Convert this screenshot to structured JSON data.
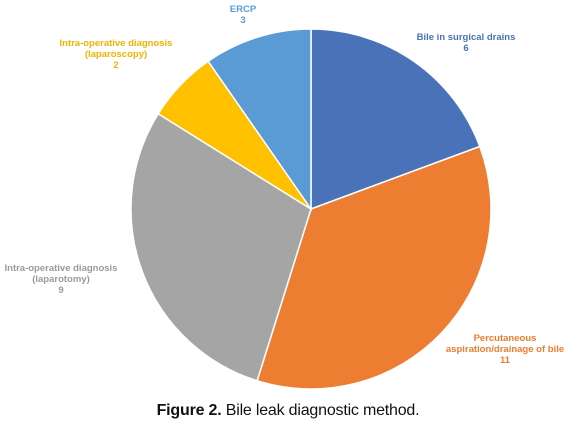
{
  "caption": {
    "label": "Figure 2.",
    "text": "Bile leak diagnostic method."
  },
  "chart_data": {
    "type": "pie",
    "start_angle_deg": 0,
    "direction": "clockwise",
    "slices": [
      {
        "label_lines": [
          "Bile in surgical drains"
        ],
        "value": 6,
        "color": "#4a72b8",
        "label_color": "#4a72b8"
      },
      {
        "label_lines": [
          "Percutaneous",
          "aspiration/drainage of bile"
        ],
        "value": 11,
        "color": "#ed7d31",
        "label_color": "#ed7d31"
      },
      {
        "label_lines": [
          "Intra-operative diagnosis",
          "(laparotomy)"
        ],
        "value": 9,
        "color": "#a5a5a5",
        "label_color": "#9a9a9a"
      },
      {
        "label_lines": [
          "Intra-operative diagnosis",
          "(laparoscopy)"
        ],
        "value": 2,
        "color": "#ffc000",
        "label_color": "#f0b400"
      },
      {
        "label_lines": [
          "ERCP"
        ],
        "value": 3,
        "color": "#5b9bd5",
        "label_color": "#5b9bd5"
      }
    ]
  }
}
